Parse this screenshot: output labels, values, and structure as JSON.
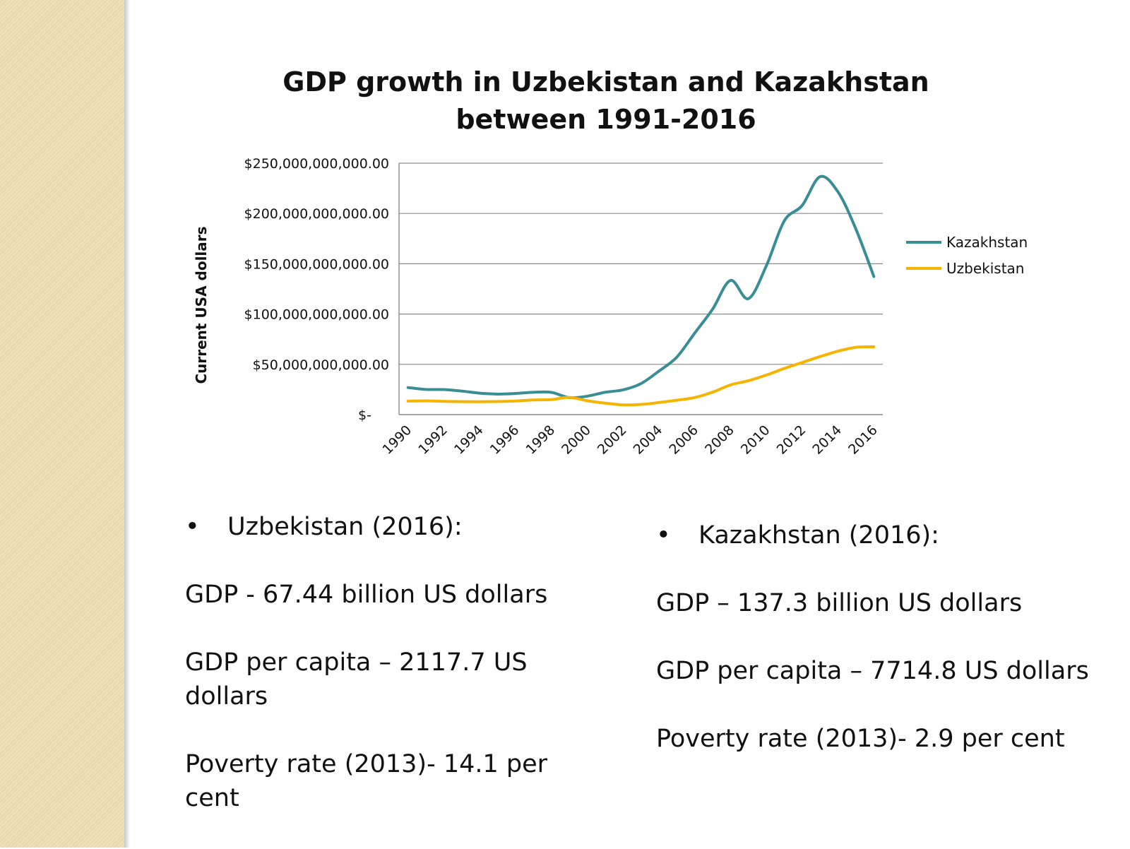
{
  "chart_data": {
    "type": "line",
    "title": [
      "GDP growth in Uzbekistan and Kazakhstan",
      "between 1991-2016"
    ],
    "ylabel": "Current USA dollars",
    "xlabel": "",
    "ylim": [
      0,
      250000000000
    ],
    "x_tick_labels": [
      "1990",
      "1992",
      "1994",
      "1996",
      "1998",
      "2000",
      "2002",
      "2004",
      "2006",
      "2008",
      "2010",
      "2012",
      "2014",
      "2016"
    ],
    "y_tick_labels": [
      "$-",
      "$50,000,000,000.00",
      "$100,000,000,000.00",
      "$150,000,000,000.00",
      "$200,000,000,000.00",
      "$250,000,000,000.00"
    ],
    "grid": true,
    "legend_position": "right",
    "x": [
      1990,
      1991,
      1992,
      1993,
      1994,
      1995,
      1996,
      1997,
      1998,
      1999,
      2000,
      2001,
      2002,
      2003,
      2004,
      2005,
      2006,
      2007,
      2008,
      2009,
      2010,
      2011,
      2012,
      2013,
      2014,
      2015,
      2016
    ],
    "series": [
      {
        "name": "Kazakhstan",
        "color": "#3a8c95",
        "values": [
          26900000000,
          25000000000,
          24900000000,
          23400000000,
          21300000000,
          20400000000,
          21000000000,
          22200000000,
          22100000000,
          16900000000,
          18300000000,
          22200000000,
          24600000000,
          30800000000,
          43200000000,
          57100000000,
          81000000000,
          104800000000,
          133400000000,
          115300000000,
          148000000000,
          192600000000,
          208000000000,
          236600000000,
          221400000000,
          184400000000,
          137300000000
        ]
      },
      {
        "name": "Uzbekistan",
        "color": "#f4b400",
        "values": [
          13400000000,
          13700000000,
          13200000000,
          12900000000,
          12800000000,
          13000000000,
          13500000000,
          14600000000,
          14900000000,
          17100000000,
          13800000000,
          11400000000,
          9700000000,
          10100000000,
          12000000000,
          14300000000,
          17000000000,
          22300000000,
          29500000000,
          33700000000,
          39300000000,
          45900000000,
          51800000000,
          57700000000,
          63100000000,
          66900000000,
          67440000000
        ]
      }
    ]
  },
  "left_column": {
    "bullet": "•",
    "heading": "Uzbekistan (2016):",
    "gdp": "GDP - 67.44 billion US dollars",
    "per_capita": "GDP per capita – 2117.7 US dollars",
    "poverty": "Poverty rate (2013)- 14.1 per cent"
  },
  "right_column": {
    "bullet": "•",
    "heading": "Kazakhstan (2016):",
    "gdp": "GDP – 137.3 billion US dollars",
    "per_capita": "GDP per capita – 7714.8 US dollars",
    "poverty": "Poverty rate (2013)- 2.9 per cent"
  },
  "colors": {
    "side_strip": "#efdcb0",
    "kazakhstan": "#3a8c95",
    "uzbekistan": "#f4b400"
  }
}
